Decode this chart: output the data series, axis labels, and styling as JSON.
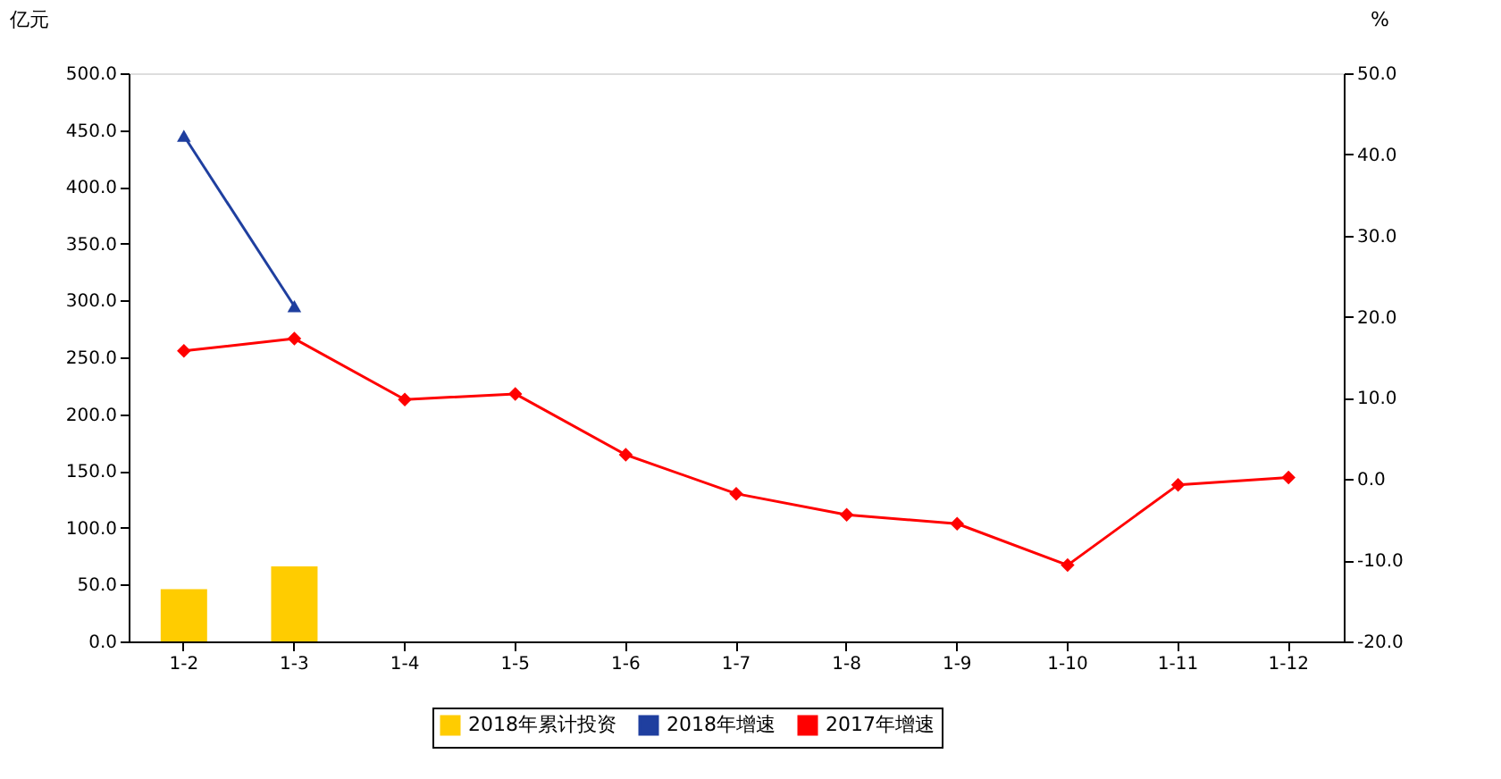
{
  "chart_data": {
    "type": "bar",
    "categories": [
      "1-2",
      "1-3",
      "1-4",
      "1-5",
      "1-6",
      "1-7",
      "1-8",
      "1-9",
      "1-10",
      "1-11",
      "1-12"
    ],
    "ylabel": "亿元",
    "y2label": "%",
    "ylim": [
      0,
      500
    ],
    "yticks": [
      {
        "value": 0,
        "label": "0.0"
      },
      {
        "value": 50,
        "label": "50.0"
      },
      {
        "value": 100,
        "label": "100.0"
      },
      {
        "value": 150,
        "label": "150.0"
      },
      {
        "value": 200,
        "label": "200.0"
      },
      {
        "value": 250,
        "label": "250.0"
      },
      {
        "value": 300,
        "label": "300.0"
      },
      {
        "value": 350,
        "label": "350.0"
      },
      {
        "value": 400,
        "label": "400.0"
      },
      {
        "value": 450,
        "label": "450.0"
      },
      {
        "value": 500,
        "label": "500.0"
      }
    ],
    "y2lim": [
      -20,
      50
    ],
    "y2ticks": [
      {
        "value": -20,
        "label": "-20.0"
      },
      {
        "value": -10,
        "label": "-10.0"
      },
      {
        "value": 0,
        "label": "0.0"
      },
      {
        "value": 10,
        "label": "10.0"
      },
      {
        "value": 20,
        "label": "20.0"
      },
      {
        "value": 30,
        "label": "30.0"
      },
      {
        "value": 40,
        "label": "40.0"
      },
      {
        "value": 50,
        "label": "50.0"
      }
    ],
    "series": [
      {
        "name": "2018年累计投资",
        "color": "#ffcc00",
        "values": [
          46,
          66,
          null,
          null,
          null,
          null,
          null,
          null,
          null,
          null,
          null
        ]
      },
      {
        "name": "2018年增速",
        "type": "line",
        "axis": "y2",
        "color": "#1f3f9f",
        "marker": "triangle",
        "values": [
          42.3,
          21.3,
          null,
          null,
          null,
          null,
          null,
          null,
          null,
          null,
          null
        ]
      },
      {
        "name": "2017年增速",
        "type": "line",
        "axis": "y2",
        "color": "#ff0000",
        "marker": "diamond",
        "values": [
          15.8,
          17.3,
          9.8,
          10.5,
          3.0,
          -1.8,
          -4.4,
          -5.5,
          -10.6,
          -0.7,
          0.2
        ]
      }
    ],
    "legend": "bottom",
    "grid": false
  }
}
